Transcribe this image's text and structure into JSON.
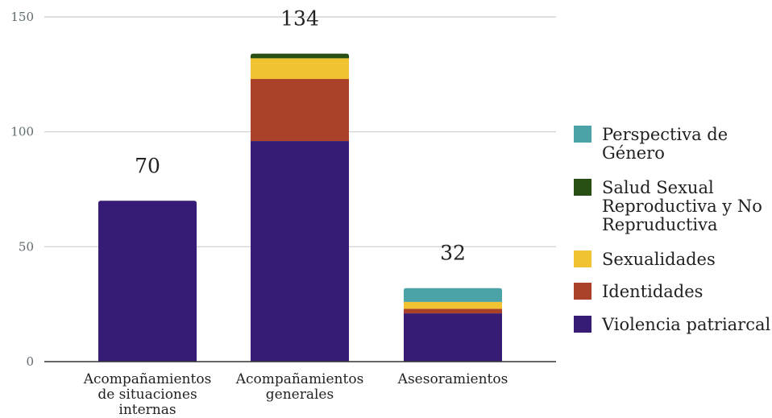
{
  "chart_data": {
    "type": "bar",
    "stacked": true,
    "categories": [
      "Acompañamientos de situaciones internas",
      "Acompañamientos generales",
      "Asesoramientos"
    ],
    "category_label_lines": [
      [
        "Acompañamientos",
        "de situaciones",
        "internas"
      ],
      [
        "Acompañamientos",
        "generales"
      ],
      [
        "Asesoramientos"
      ]
    ],
    "series": [
      {
        "name": "Violencia patriarcal",
        "color": "#361c74",
        "values": [
          70,
          96,
          21
        ]
      },
      {
        "name": "Identidades",
        "color": "#aa4229",
        "values": [
          0,
          27,
          2
        ]
      },
      {
        "name": "Sexualidades",
        "color": "#f1c232",
        "values": [
          0,
          9,
          3
        ]
      },
      {
        "name": "Salud Sexual Reproductiva y No Repruductiva",
        "color": "#274e13",
        "values": [
          0,
          2,
          0
        ]
      },
      {
        "name": "Perspectiva de Género",
        "color": "#4ba3a8",
        "values": [
          0,
          0,
          6
        ]
      }
    ],
    "totals": [
      70,
      134,
      32
    ],
    "y_ticks": [
      0,
      50,
      100,
      150
    ],
    "ylim": [
      0,
      150
    ],
    "grid": true,
    "legend_position": "right",
    "legend_order": [
      {
        "series": 4,
        "lines": [
          "Perspectiva de",
          "Género"
        ]
      },
      {
        "series": 3,
        "lines": [
          "Salud Sexual",
          "Reproductiva y No",
          "Repruductiva"
        ]
      },
      {
        "series": 2,
        "lines": [
          "Sexualidades"
        ]
      },
      {
        "series": 1,
        "lines": [
          "Identidades"
        ]
      },
      {
        "series": 0,
        "lines": [
          "Violencia patriarcal"
        ]
      }
    ],
    "title": "",
    "xlabel": "",
    "ylabel": ""
  }
}
